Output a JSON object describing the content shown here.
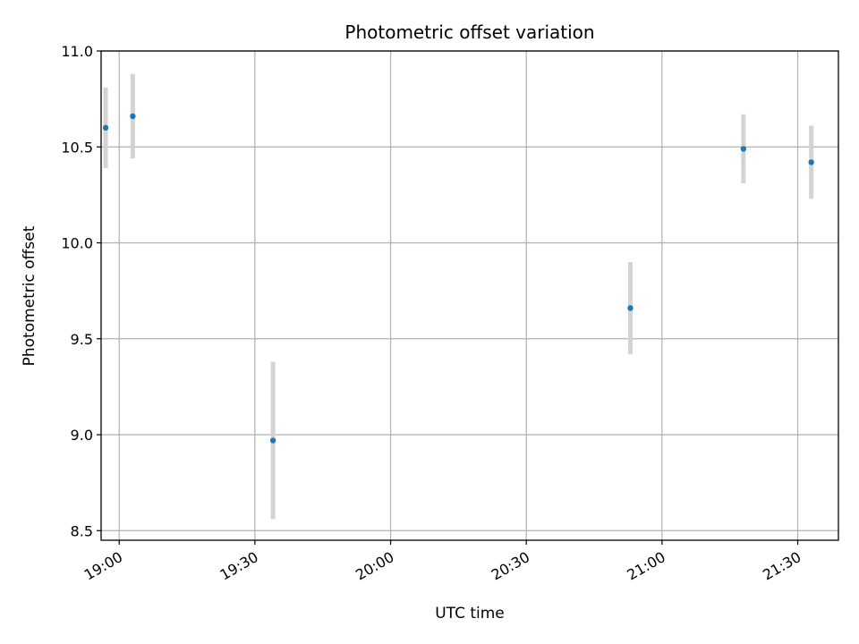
{
  "chart_data": {
    "type": "scatter",
    "title": "Photometric offset variation",
    "xlabel": "UTC time",
    "ylabel": "Photometric offset",
    "x_axis_type": "time",
    "xlim": [
      "18:56",
      "21:39"
    ],
    "ylim": [
      8.45,
      11.0
    ],
    "x_ticks": [
      "19:00",
      "19:30",
      "20:00",
      "20:30",
      "21:00",
      "21:30"
    ],
    "y_ticks": [
      8.5,
      9.0,
      9.5,
      10.0,
      10.5,
      11.0
    ],
    "y_tick_labels": [
      "8.5",
      "9.0",
      "9.5",
      "10.0",
      "10.5",
      "11.0"
    ],
    "grid": true,
    "colors": {
      "point": "#1f77b4",
      "errorbar": "#d3d3d3",
      "grid": "#b0b0b0"
    },
    "points": [
      {
        "x": "18:57",
        "y": 10.6,
        "yerr": 0.21
      },
      {
        "x": "19:03",
        "y": 10.66,
        "yerr": 0.22
      },
      {
        "x": "19:34",
        "y": 8.97,
        "yerr": 0.41
      },
      {
        "x": "20:53",
        "y": 9.66,
        "yerr": 0.24
      },
      {
        "x": "21:18",
        "y": 10.49,
        "yerr": 0.18
      },
      {
        "x": "21:33",
        "y": 10.42,
        "yerr": 0.19
      }
    ]
  }
}
